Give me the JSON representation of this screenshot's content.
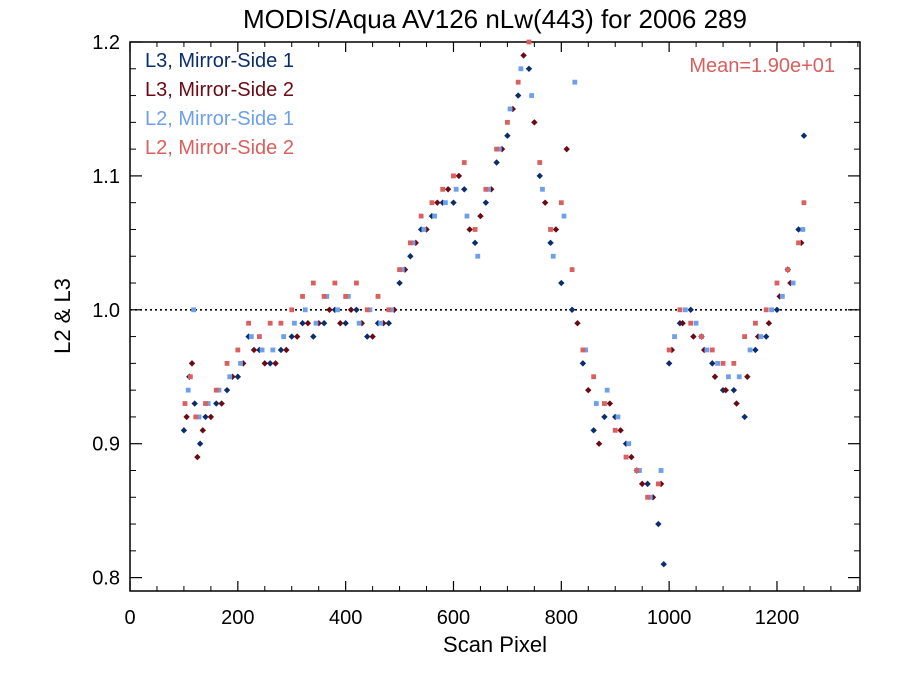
{
  "chart_data": {
    "type": "scatter",
    "title": "MODIS/Aqua AV126 nLw(443) for 2006 289",
    "xlabel": "Scan Pixel",
    "ylabel": "L2 & L3",
    "xlim": [
      0,
      1354
    ],
    "ylim": [
      0.79,
      1.2
    ],
    "xticks": [
      0,
      200,
      400,
      600,
      800,
      1000,
      1200
    ],
    "xtick_labels": [
      "0",
      "200",
      "400",
      "600",
      "800",
      "1000",
      "1200"
    ],
    "yticks": [
      0.8,
      0.9,
      1.0,
      1.1,
      1.2
    ],
    "ytick_labels": [
      "0.8",
      "0.9",
      "1.0",
      "1.1",
      "1.2"
    ],
    "reference_line": {
      "y": 1.0,
      "style": "dotted"
    },
    "annotation": {
      "text": "Mean=1.90e+01",
      "color": "#d9605f",
      "placement": "top-right"
    },
    "grid": false,
    "legend_placement": "top-left",
    "series": [
      {
        "name": "L3, Mirror-Side 1",
        "color": "#0b2d6b",
        "marker": "diamond",
        "points": [
          [
            100,
            0.91
          ],
          [
            110,
            0.95
          ],
          [
            120,
            0.93
          ],
          [
            130,
            0.9
          ],
          [
            140,
            0.92
          ],
          [
            160,
            0.93
          ],
          [
            180,
            0.94
          ],
          [
            200,
            0.95
          ],
          [
            220,
            0.98
          ],
          [
            240,
            0.97
          ],
          [
            260,
            0.96
          ],
          [
            280,
            0.97
          ],
          [
            300,
            0.98
          ],
          [
            320,
            0.99
          ],
          [
            340,
            0.98
          ],
          [
            360,
            0.99
          ],
          [
            380,
            1.0
          ],
          [
            400,
            0.99
          ],
          [
            420,
            1.0
          ],
          [
            440,
            0.98
          ],
          [
            460,
            0.99
          ],
          [
            480,
            0.99
          ],
          [
            500,
            1.02
          ],
          [
            520,
            1.04
          ],
          [
            540,
            1.06
          ],
          [
            560,
            1.07
          ],
          [
            580,
            1.08
          ],
          [
            600,
            1.08
          ],
          [
            620,
            1.09
          ],
          [
            640,
            1.05
          ],
          [
            660,
            1.08
          ],
          [
            680,
            1.11
          ],
          [
            700,
            1.13
          ],
          [
            720,
            1.16
          ],
          [
            740,
            1.18
          ],
          [
            760,
            1.1
          ],
          [
            780,
            1.05
          ],
          [
            800,
            1.02
          ],
          [
            820,
            1.0
          ],
          [
            840,
            0.96
          ],
          [
            860,
            0.91
          ],
          [
            880,
            0.92
          ],
          [
            900,
            0.92
          ],
          [
            920,
            0.9
          ],
          [
            940,
            0.88
          ],
          [
            960,
            0.87
          ],
          [
            980,
            0.84
          ],
          [
            990,
            0.81
          ],
          [
            1000,
            0.96
          ],
          [
            1020,
            0.99
          ],
          [
            1040,
            1.0
          ],
          [
            1060,
            0.98
          ],
          [
            1080,
            0.96
          ],
          [
            1100,
            0.94
          ],
          [
            1120,
            0.94
          ],
          [
            1140,
            0.92
          ],
          [
            1160,
            0.97
          ],
          [
            1180,
            0.98
          ],
          [
            1200,
            1.0
          ],
          [
            1220,
            1.03
          ],
          [
            1240,
            1.06
          ],
          [
            1250,
            1.13
          ]
        ]
      },
      {
        "name": "L3, Mirror-Side 2",
        "color": "#6b0a14",
        "marker": "diamond",
        "points": [
          [
            105,
            0.92
          ],
          [
            115,
            0.96
          ],
          [
            125,
            0.89
          ],
          [
            135,
            0.91
          ],
          [
            150,
            0.92
          ],
          [
            170,
            0.93
          ],
          [
            190,
            0.95
          ],
          [
            210,
            0.96
          ],
          [
            230,
            0.97
          ],
          [
            250,
            0.96
          ],
          [
            270,
            0.96
          ],
          [
            290,
            0.97
          ],
          [
            310,
            0.98
          ],
          [
            330,
            0.99
          ],
          [
            350,
            0.99
          ],
          [
            370,
            1.0
          ],
          [
            390,
            0.99
          ],
          [
            410,
            1.0
          ],
          [
            430,
            0.99
          ],
          [
            450,
            0.98
          ],
          [
            470,
            0.99
          ],
          [
            490,
            1.0
          ],
          [
            510,
            1.03
          ],
          [
            530,
            1.05
          ],
          [
            550,
            1.06
          ],
          [
            570,
            1.08
          ],
          [
            590,
            1.09
          ],
          [
            610,
            1.1
          ],
          [
            630,
            1.06
          ],
          [
            650,
            1.07
          ],
          [
            670,
            1.09
          ],
          [
            690,
            1.12
          ],
          [
            710,
            1.15
          ],
          [
            730,
            1.19
          ],
          [
            750,
            1.14
          ],
          [
            770,
            1.08
          ],
          [
            790,
            1.06
          ],
          [
            810,
            1.12
          ],
          [
            830,
            0.99
          ],
          [
            850,
            0.94
          ],
          [
            870,
            0.9
          ],
          [
            890,
            0.93
          ],
          [
            910,
            0.91
          ],
          [
            930,
            0.89
          ],
          [
            950,
            0.87
          ],
          [
            970,
            0.86
          ],
          [
            985,
            0.87
          ],
          [
            1005,
            0.97
          ],
          [
            1025,
            0.99
          ],
          [
            1045,
            0.98
          ],
          [
            1065,
            0.97
          ],
          [
            1085,
            0.95
          ],
          [
            1105,
            0.94
          ],
          [
            1125,
            0.93
          ],
          [
            1145,
            0.95
          ],
          [
            1165,
            0.98
          ],
          [
            1185,
            0.99
          ],
          [
            1205,
            1.01
          ],
          [
            1225,
            1.02
          ],
          [
            1245,
            1.05
          ]
        ]
      },
      {
        "name": "L2, Mirror-Side 1",
        "color": "#6ea0ea",
        "marker": "square",
        "points": [
          [
            108,
            0.94
          ],
          [
            118,
            1.0
          ],
          [
            128,
            0.92
          ],
          [
            145,
            0.93
          ],
          [
            165,
            0.94
          ],
          [
            185,
            0.95
          ],
          [
            205,
            0.96
          ],
          [
            225,
            0.98
          ],
          [
            245,
            0.97
          ],
          [
            265,
            0.97
          ],
          [
            285,
            0.98
          ],
          [
            305,
            0.99
          ],
          [
            325,
            1.0
          ],
          [
            345,
            0.99
          ],
          [
            365,
            1.01
          ],
          [
            385,
            1.0
          ],
          [
            405,
            1.01
          ],
          [
            425,
            0.99
          ],
          [
            445,
            1.0
          ],
          [
            465,
            0.99
          ],
          [
            485,
            1.0
          ],
          [
            505,
            1.03
          ],
          [
            525,
            1.05
          ],
          [
            545,
            1.06
          ],
          [
            565,
            1.07
          ],
          [
            585,
            1.08
          ],
          [
            605,
            1.09
          ],
          [
            625,
            1.07
          ],
          [
            645,
            1.04
          ],
          [
            665,
            1.09
          ],
          [
            685,
            1.12
          ],
          [
            705,
            1.15
          ],
          [
            725,
            1.18
          ],
          [
            745,
            1.16
          ],
          [
            765,
            1.09
          ],
          [
            785,
            1.04
          ],
          [
            805,
            1.07
          ],
          [
            825,
            1.17
          ],
          [
            845,
            0.97
          ],
          [
            865,
            0.93
          ],
          [
            885,
            0.94
          ],
          [
            905,
            0.92
          ],
          [
            925,
            0.9
          ],
          [
            945,
            0.88
          ],
          [
            965,
            0.86
          ],
          [
            985,
            0.88
          ],
          [
            1010,
            0.98
          ],
          [
            1030,
            1.0
          ],
          [
            1050,
            0.99
          ],
          [
            1070,
            0.97
          ],
          [
            1090,
            0.96
          ],
          [
            1110,
            0.95
          ],
          [
            1130,
            0.95
          ],
          [
            1150,
            0.97
          ],
          [
            1170,
            0.98
          ],
          [
            1190,
            1.0
          ],
          [
            1210,
            1.01
          ],
          [
            1230,
            1.02
          ],
          [
            1248,
            1.06
          ]
        ]
      },
      {
        "name": "L2, Mirror-Side 2",
        "color": "#d9605f",
        "marker": "square",
        "points": [
          [
            102,
            0.93
          ],
          [
            112,
            0.95
          ],
          [
            122,
            0.92
          ],
          [
            140,
            0.93
          ],
          [
            160,
            0.94
          ],
          [
            180,
            0.96
          ],
          [
            200,
            0.97
          ],
          [
            220,
            0.99
          ],
          [
            240,
            0.98
          ],
          [
            260,
            0.99
          ],
          [
            280,
            0.99
          ],
          [
            300,
            1.0
          ],
          [
            320,
            1.01
          ],
          [
            340,
            1.02
          ],
          [
            360,
            1.01
          ],
          [
            380,
            1.02
          ],
          [
            400,
            1.01
          ],
          [
            420,
            1.02
          ],
          [
            440,
            1.0
          ],
          [
            460,
            1.01
          ],
          [
            480,
            1.0
          ],
          [
            500,
            1.03
          ],
          [
            520,
            1.05
          ],
          [
            540,
            1.07
          ],
          [
            560,
            1.08
          ],
          [
            580,
            1.09
          ],
          [
            600,
            1.1
          ],
          [
            620,
            1.11
          ],
          [
            640,
            1.06
          ],
          [
            660,
            1.09
          ],
          [
            680,
            1.12
          ],
          [
            700,
            1.14
          ],
          [
            720,
            1.17
          ],
          [
            740,
            1.2
          ],
          [
            760,
            1.11
          ],
          [
            780,
            1.06
          ],
          [
            800,
            1.08
          ],
          [
            820,
            1.03
          ],
          [
            840,
            0.97
          ],
          [
            860,
            0.95
          ],
          [
            880,
            0.93
          ],
          [
            900,
            0.91
          ],
          [
            920,
            0.89
          ],
          [
            940,
            0.88
          ],
          [
            960,
            0.86
          ],
          [
            980,
            0.87
          ],
          [
            1000,
            0.97
          ],
          [
            1020,
            1.0
          ],
          [
            1040,
            0.99
          ],
          [
            1060,
            0.98
          ],
          [
            1080,
            0.97
          ],
          [
            1100,
            0.96
          ],
          [
            1120,
            0.96
          ],
          [
            1140,
            0.98
          ],
          [
            1160,
            0.99
          ],
          [
            1180,
            1.0
          ],
          [
            1200,
            1.02
          ],
          [
            1220,
            1.03
          ],
          [
            1240,
            1.05
          ],
          [
            1250,
            1.08
          ]
        ]
      }
    ]
  }
}
